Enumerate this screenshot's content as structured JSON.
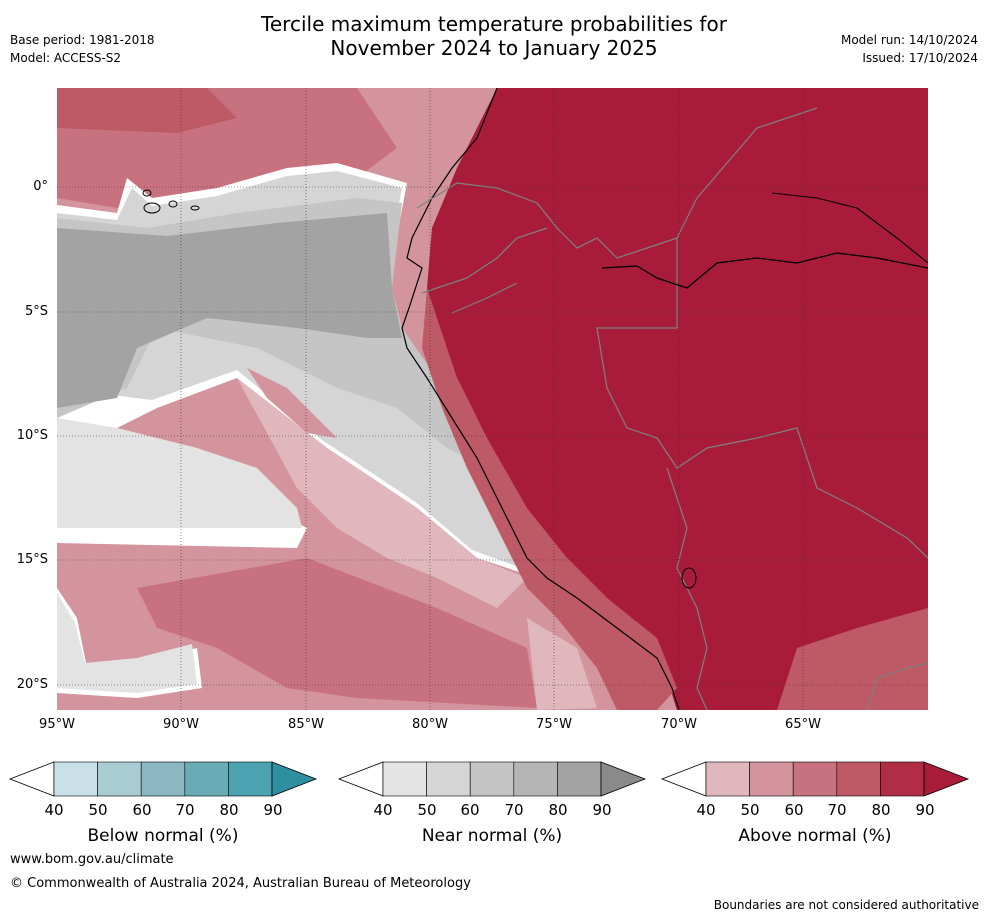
{
  "title_line1": "Tercile maximum temperature probabilities for",
  "title_line2": "November 2024 to January 2025",
  "base_period": "Base period: 1981-2018",
  "model": "Model: ACCESS-S2",
  "model_run": "Model run: 14/10/2024",
  "issued": "Issued: 17/10/2024",
  "lat_labels": [
    "0°",
    "5°S",
    "10°S",
    "15°S",
    "20°S"
  ],
  "lon_labels": [
    "95°W",
    "90°W",
    "85°W",
    "80°W",
    "75°W",
    "70°W",
    "65°W"
  ],
  "colorbars": [
    {
      "title": "Below normal (%)",
      "ticks": [
        "40",
        "50",
        "60",
        "70",
        "80",
        "90"
      ],
      "colors": [
        "#c9e1e6",
        "#a9cbd2",
        "#8ab7c2",
        "#6aacb6",
        "#4ba2b0",
        "#2e8fa0"
      ]
    },
    {
      "title": "Near normal (%)",
      "ticks": [
        "40",
        "50",
        "60",
        "70",
        "80",
        "90"
      ],
      "colors": [
        "#e3e3e3",
        "#d5d5d5",
        "#c5c5c5",
        "#b5b5b5",
        "#a3a3a3",
        "#8a8a8a"
      ]
    },
    {
      "title": "Above normal (%)",
      "ticks": [
        "40",
        "50",
        "60",
        "70",
        "80",
        "90"
      ],
      "colors": [
        "#e0b7bd",
        "#d4949d",
        "#c9727f",
        "#be5966",
        "#b02d45",
        "#a81c3a"
      ]
    }
  ],
  "website": "www.bom.gov.au/climate",
  "copyright": "© Commonwealth of Australia 2024, Australian Bureau of Meteorology",
  "disclaimer": "Boundaries are not considered authoritative"
}
